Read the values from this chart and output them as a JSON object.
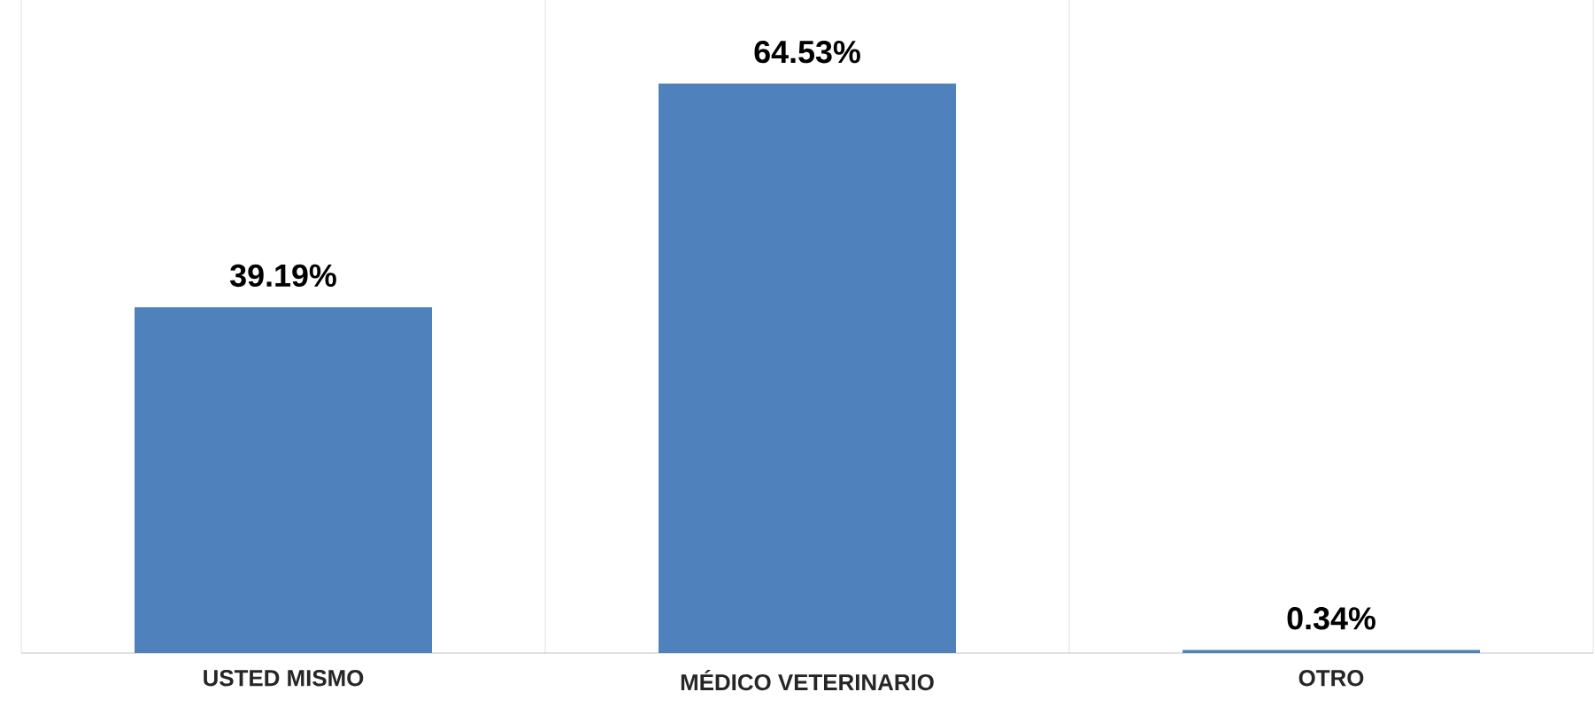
{
  "chart_data": {
    "type": "bar",
    "categories": [
      "USTED MISMO",
      "MÉDICO VETERINARIO",
      "OTRO"
    ],
    "values": [
      39.19,
      64.53,
      0.34
    ],
    "value_labels": [
      "39.19%",
      "64.53%",
      "0.34%"
    ],
    "color": "#4f81bd",
    "ylim": [
      0,
      74
    ],
    "grid": "x"
  }
}
